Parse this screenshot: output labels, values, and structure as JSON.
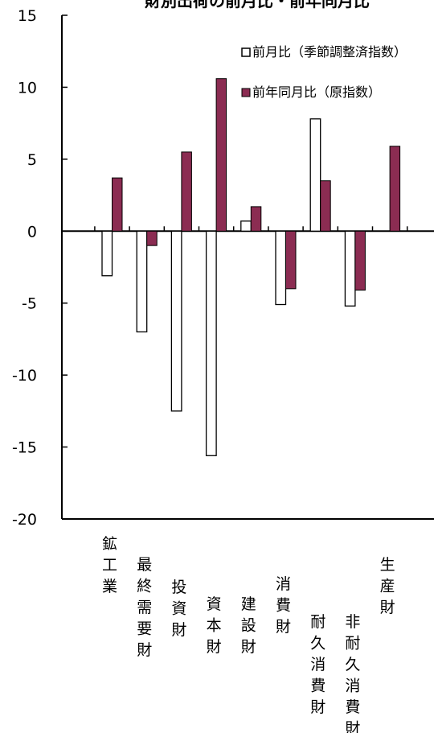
{
  "chart_data": {
    "type": "bar",
    "title": "財別出荷の前月比・前年同月比",
    "xlabel": "",
    "ylabel": "",
    "ylim": [
      -20,
      15
    ],
    "yticks": [
      15,
      10,
      5,
      0,
      -5,
      -10,
      -15,
      -20
    ],
    "ytick_labels": [
      "15",
      "10",
      "5",
      "0",
      "-5",
      "-10",
      "-15",
      "-20"
    ],
    "grid": false,
    "legend_position": "top-right",
    "categories": [
      "鉱工業",
      "最終需要財",
      "投資財",
      "資本財",
      "建設財",
      "消費財",
      "耐久消費財",
      "非耐久消費財",
      "生産財"
    ],
    "series": [
      {
        "name": "前月比（季節調整済指数）",
        "color": "#ffffff",
        "values": [
          -3.1,
          -7.0,
          -12.5,
          -15.6,
          0.7,
          -5.1,
          7.8,
          -5.2,
          0
        ]
      },
      {
        "name": "前年同月比（原指数）",
        "color": "#8b2c52",
        "values": [
          3.7,
          -1.0,
          5.5,
          10.6,
          1.7,
          -4.0,
          3.5,
          -4.1,
          5.9
        ]
      }
    ]
  }
}
